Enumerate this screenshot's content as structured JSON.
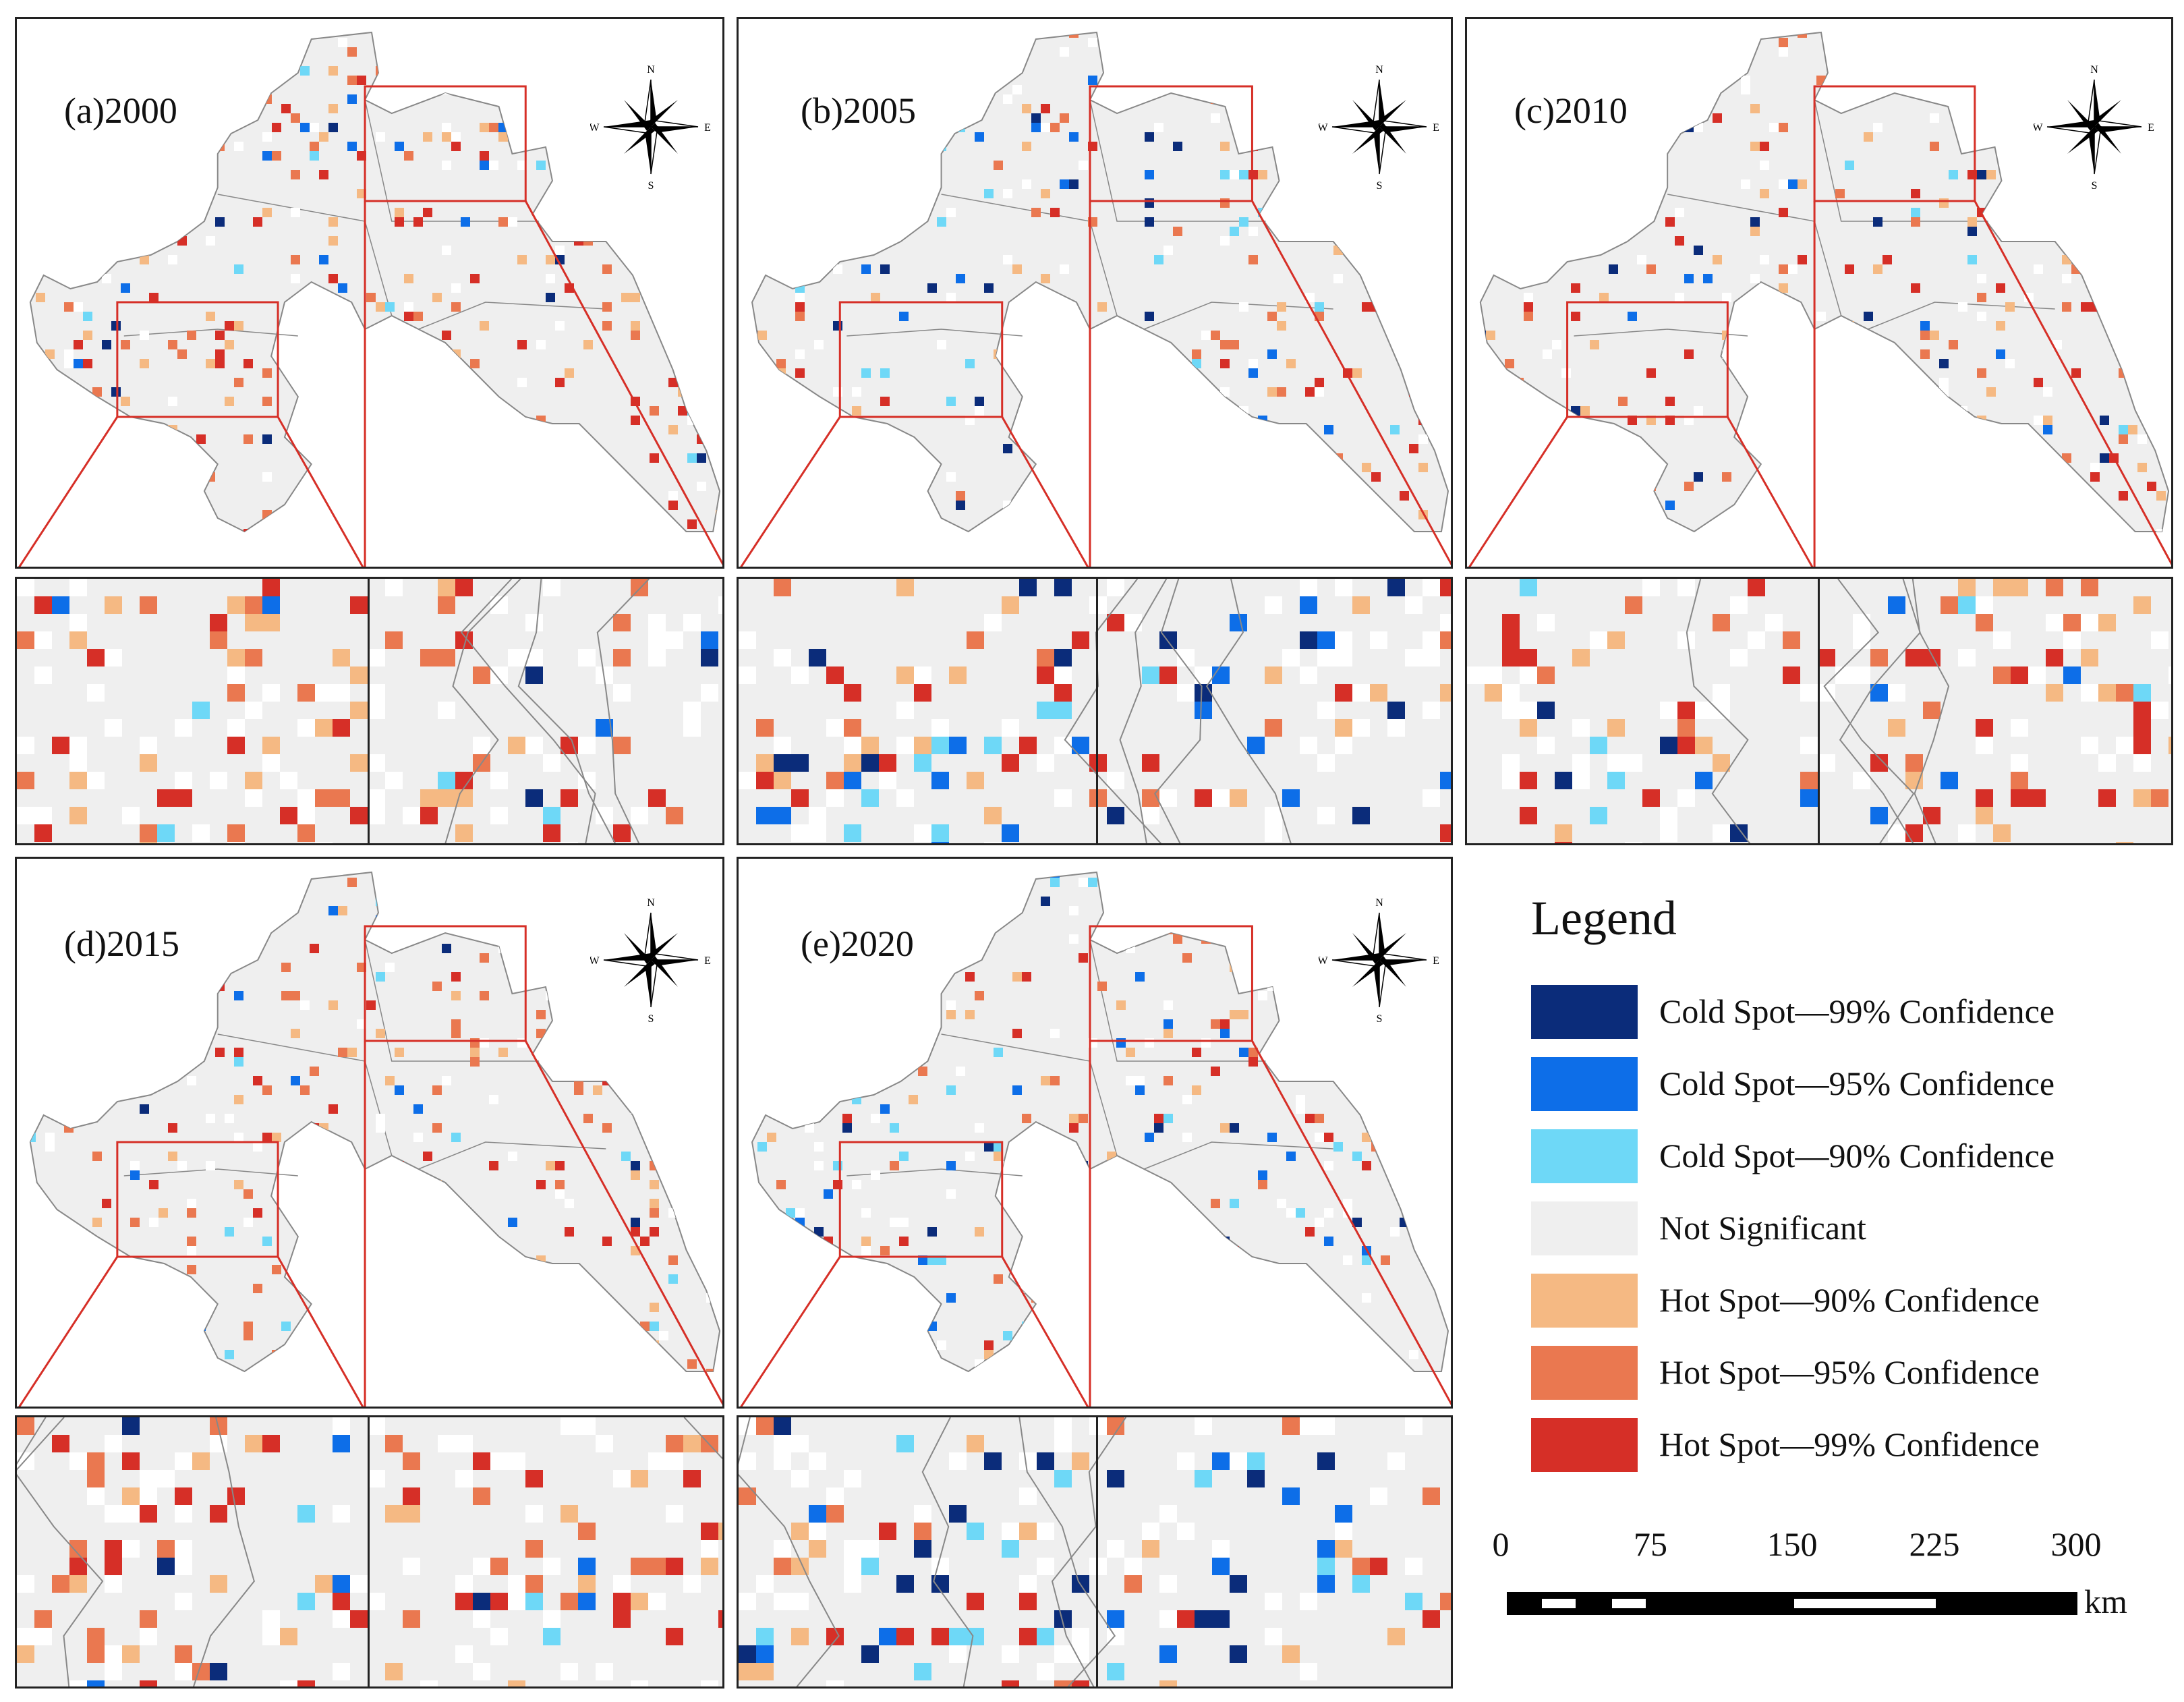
{
  "panels": [
    {
      "id": "a",
      "label": "(a)2000"
    },
    {
      "id": "b",
      "label": "(b)2005"
    },
    {
      "id": "c",
      "label": "(c)2010"
    },
    {
      "id": "d",
      "label": "(d)2015"
    },
    {
      "id": "e",
      "label": "(e)2020"
    }
  ],
  "compass": {
    "n": "N",
    "s": "S",
    "e": "E",
    "w": "W"
  },
  "legend": {
    "title": "Legend",
    "items": [
      {
        "label": "Cold Spot—99% Confidence",
        "color": "#0b2c7a"
      },
      {
        "label": "Cold Spot—95% Confidence",
        "color": "#0d6ee8"
      },
      {
        "label": "Cold Spot—90% Confidence",
        "color": "#6ed8f7"
      },
      {
        "label": "Not Significant",
        "color": "#efefef"
      },
      {
        "label": "Hot Spot—90% Confidence",
        "color": "#f5b983"
      },
      {
        "label": "Hot Spot—95% Confidence",
        "color": "#ea7850"
      },
      {
        "label": "Hot Spot—99% Confidence",
        "color": "#d62f27"
      }
    ]
  },
  "scale": {
    "ticks": [
      "0",
      "75",
      "150",
      "225",
      "300"
    ],
    "unit": "km"
  },
  "colors": {
    "frame": "#222222",
    "zoom_box": "#d62f27",
    "region_fill": "#efefef",
    "boundary": "#888888"
  }
}
